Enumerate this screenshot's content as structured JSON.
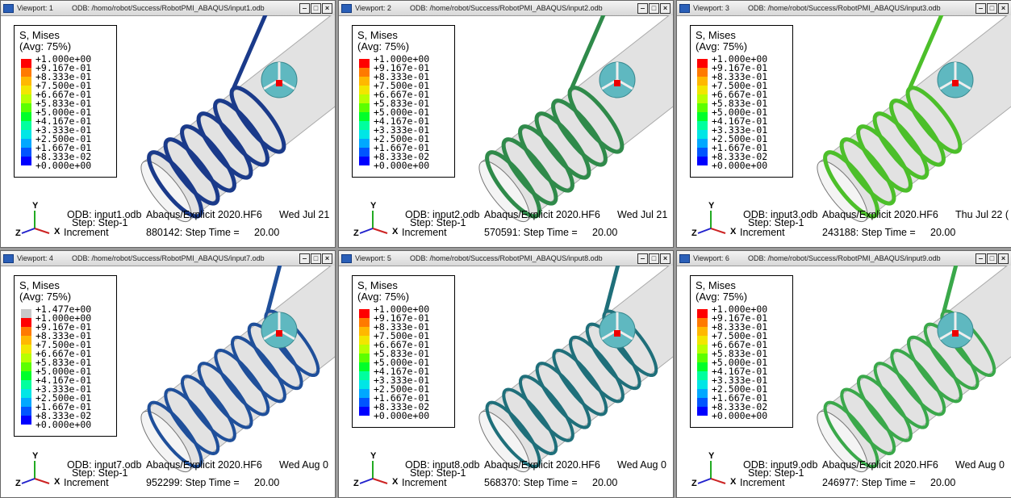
{
  "legend_colors": [
    "#ff0000",
    "#ff7a00",
    "#ffb800",
    "#f2e600",
    "#b8ff00",
    "#5cff00",
    "#00ff2a",
    "#00ff9e",
    "#00e6e6",
    "#00a8ff",
    "#0055ff",
    "#0000ff"
  ],
  "viewports": [
    {
      "title": "Viewport: 1",
      "path": "ODB: /homo/robot/Success/RobotPMI_ABAQUS/input1.odb",
      "legend_title": "S, Mises",
      "legend_avg": "(Avg: 75%)",
      "legend_labels": [
        "+1.000e+00",
        "+9.167e-01",
        "+8.333e-01",
        "+7.500e-01",
        "+6.667e-01",
        "+5.833e-01",
        "+5.000e-01",
        "+4.167e-01",
        "+3.333e-01",
        "+2.500e-01",
        "+1.667e-01",
        "+8.333e-02",
        "+0.000e+00"
      ],
      "odb": "ODB: input1.odb",
      "solver": "Abaqus/Explicit 2020.HF6",
      "date": "Wed Jul 21",
      "step": "Step: Step-1",
      "increment": "Increment",
      "step_time": "880142: Step Time =",
      "time": "20.00",
      "coil_color": "#1a3a8a",
      "coils": 6
    },
    {
      "title": "Viewport: 2",
      "path": "ODB: /home/robot/Success/RobotPMI_ABAQUS/input2.odb",
      "legend_title": "S, Mises",
      "legend_avg": "(Avg: 75%)",
      "legend_labels": [
        "+1.000e+00",
        "+9.167e-01",
        "+8.333e-01",
        "+7.500e-01",
        "+6.667e-01",
        "+5.833e-01",
        "+5.000e-01",
        "+4.167e-01",
        "+3.333e-01",
        "+2.500e-01",
        "+1.667e-01",
        "+8.333e-02",
        "+0.000e+00"
      ],
      "odb": "ODB: input2.odb",
      "solver": "Abaqus/Explicit 2020.HF6",
      "date": "Wed Jul 21",
      "step": "Step: Step-1",
      "increment": "Increment",
      "step_time": "570591: Step Time =",
      "time": "20.00",
      "coil_color": "#2f8a4a",
      "coils": 6
    },
    {
      "title": "Viewport: 3",
      "path": "ODB: /home/robot/Success/RobotPMI_ABAQUS/input3.odb",
      "legend_title": "S, Mises",
      "legend_avg": "(Avg: 75%)",
      "legend_labels": [
        "+1.000e+00",
        "+9.167e-01",
        "+8.333e-01",
        "+7.500e-01",
        "+6.667e-01",
        "+5.833e-01",
        "+5.000e-01",
        "+4.167e-01",
        "+3.333e-01",
        "+2.500e-01",
        "+1.667e-01",
        "+8.333e-02",
        "+0.000e+00"
      ],
      "odb": "ODB: input3.odb",
      "solver": "Abaqus/Explicit 2020.HF6",
      "date": "Thu Jul 22 (",
      "step": "Step: Step-1",
      "increment": "Increment",
      "step_time": "243188: Step Time =",
      "time": "20.00",
      "coil_color": "#4cbf2a",
      "coils": 6
    },
    {
      "title": "Viewport: 4",
      "path": "ODB: /home/robot/Success/RobotPMI_ABAQUS/input7.odb",
      "legend_title": "S, Mises",
      "legend_avg": "(Avg: 75%)",
      "legend_labels": [
        "+1.477e+00",
        "+1.000e+00",
        "+9.167e-01",
        "+8.333e-01",
        "+7.500e-01",
        "+6.667e-01",
        "+5.833e-01",
        "+5.000e-01",
        "+4.167e-01",
        "+3.333e-01",
        "+2.500e-01",
        "+1.667e-01",
        "+8.333e-02",
        "+0.000e+00"
      ],
      "overflow_color": "#c8c8c8",
      "odb": "ODB: input7.odb",
      "solver": "Abaqus/Explicit 2020.HF6",
      "date": "Wed Aug 0",
      "step": "Step: Step-1",
      "increment": "Increment",
      "step_time": "952299: Step Time =",
      "time": "20.00",
      "coil_color": "#1f4f9a",
      "coils": 8
    },
    {
      "title": "Viewport: 5",
      "path": "ODB: /home/robot/Success/RobotPMI_ABAQUS/input8.odb",
      "legend_title": "S, Mises",
      "legend_avg": "(Avg: 75%)",
      "legend_labels": [
        "+1.000e+00",
        "+9.167e-01",
        "+8.333e-01",
        "+7.500e-01",
        "+6.667e-01",
        "+5.833e-01",
        "+5.000e-01",
        "+4.167e-01",
        "+3.333e-01",
        "+2.500e-01",
        "+1.667e-01",
        "+8.333e-02",
        "+0.000e+00"
      ],
      "odb": "ODB: input8.odb",
      "solver": "Abaqus/Explicit 2020.HF6",
      "date": "Wed Aug 0",
      "step": "Step: Step-1",
      "increment": "Increment",
      "step_time": "568370: Step Time =",
      "time": "20.00",
      "coil_color": "#1f6f7a",
      "coils": 8
    },
    {
      "title": "Viewport: 6",
      "path": "ODB: /home/robot/Success/RobotPMI_ABAQUS/input9.odb",
      "legend_title": "S, Mises",
      "legend_avg": "(Avg: 75%)",
      "legend_labels": [
        "+1.000e+00",
        "+9.167e-01",
        "+8.333e-01",
        "+7.500e-01",
        "+6.667e-01",
        "+5.833e-01",
        "+5.000e-01",
        "+4.167e-01",
        "+3.333e-01",
        "+2.500e-01",
        "+1.667e-01",
        "+8.333e-02",
        "+0.000e+00"
      ],
      "odb": "ODB: input9.odb",
      "solver": "Abaqus/Explicit 2020.HF6",
      "date": "Wed Aug 0",
      "step": "Step: Step-1",
      "increment": "Increment",
      "step_time": "246977: Step Time =",
      "time": "20.00",
      "coil_color": "#3aa84a",
      "coils": 8
    }
  ],
  "axis_labels": {
    "y": "Y",
    "z": "Z",
    "x": "X"
  }
}
